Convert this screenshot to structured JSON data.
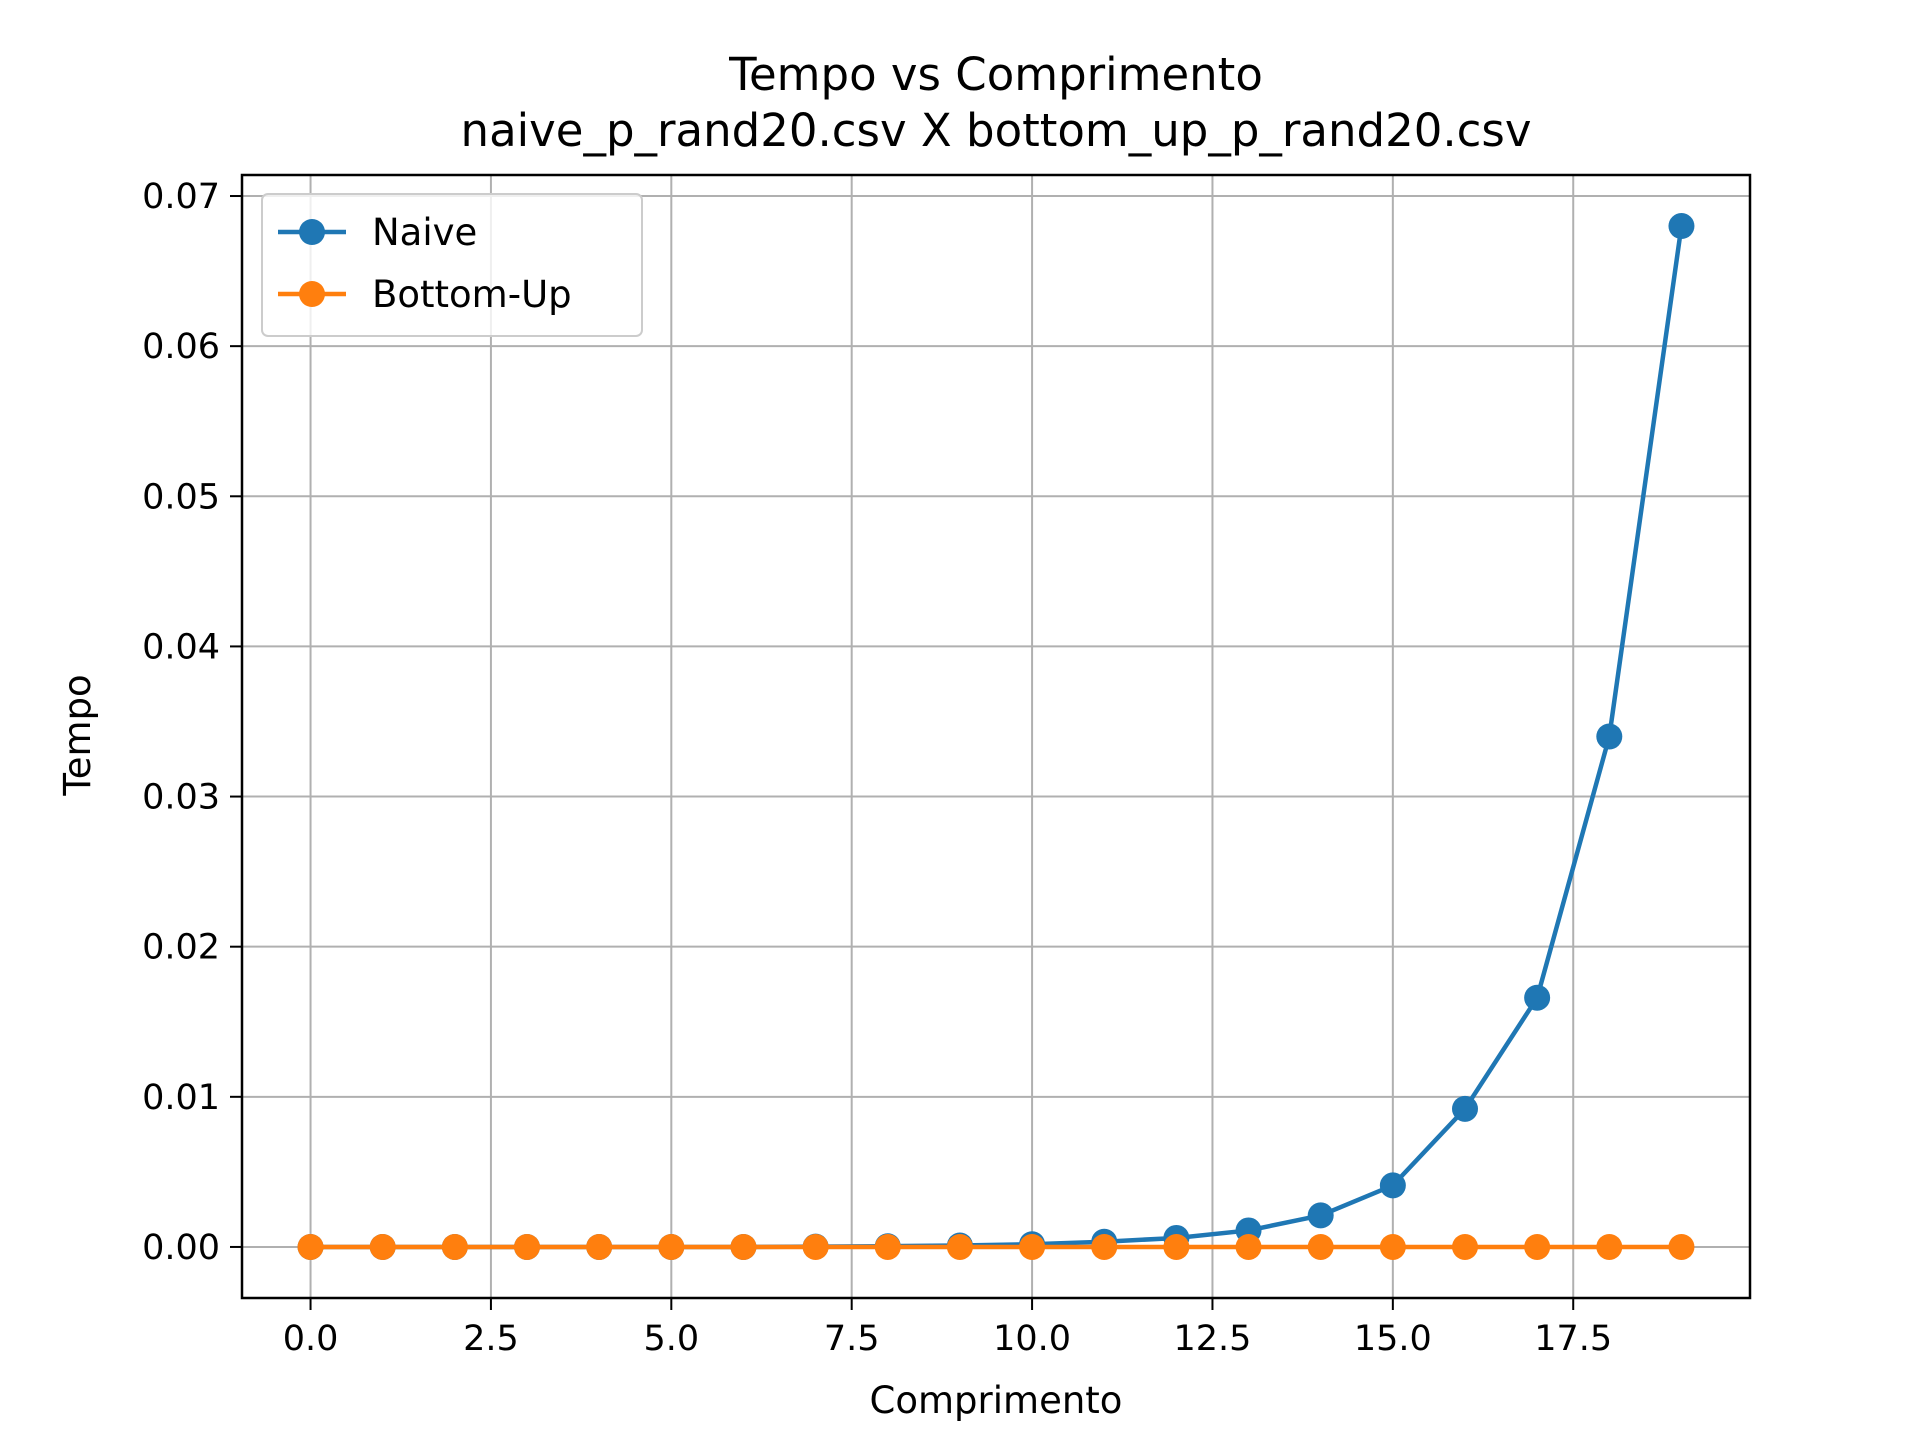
{
  "chart_data": {
    "type": "line",
    "title": "Tempo vs Comprimento",
    "subtitle": "naive_p_rand20.csv X bottom_up_p_rand20.csv",
    "xlabel": "Comprimento",
    "ylabel": "Tempo",
    "xlim": [
      -0.95,
      19.95
    ],
    "ylim": [
      -0.0034,
      0.0714
    ],
    "xticks": [
      0.0,
      2.5,
      5.0,
      7.5,
      10.0,
      12.5,
      15.0,
      17.5
    ],
    "xtick_labels": [
      "0.0",
      "2.5",
      "5.0",
      "7.5",
      "10.0",
      "12.5",
      "15.0",
      "17.5"
    ],
    "yticks": [
      0.0,
      0.01,
      0.02,
      0.03,
      0.04,
      0.05,
      0.06,
      0.07
    ],
    "ytick_labels": [
      "0.00",
      "0.01",
      "0.02",
      "0.03",
      "0.04",
      "0.05",
      "0.06",
      "0.07"
    ],
    "grid": true,
    "legend_position": "upper-left",
    "x": [
      0,
      1,
      2,
      3,
      4,
      5,
      6,
      7,
      8,
      9,
      10,
      11,
      12,
      13,
      14,
      15,
      16,
      17,
      18,
      19
    ],
    "series": [
      {
        "name": "Naive",
        "color": "#1f77b4",
        "values": [
          0.0,
          0.0,
          0.0,
          0.0,
          0.0,
          0.0,
          0.0,
          2e-05,
          5e-05,
          0.0001,
          0.00018,
          0.00035,
          0.0006,
          0.0011,
          0.0021,
          0.0041,
          0.0092,
          0.0166,
          0.034,
          0.068
        ]
      },
      {
        "name": "Bottom-Up",
        "color": "#ff7f0e",
        "values": [
          0.0,
          0.0,
          0.0,
          0.0,
          0.0,
          0.0,
          0.0,
          0.0,
          0.0,
          0.0,
          0.0,
          0.0,
          0.0,
          0.0,
          0.0,
          0.0,
          0.0,
          0.0,
          0.0,
          0.0
        ]
      }
    ]
  }
}
